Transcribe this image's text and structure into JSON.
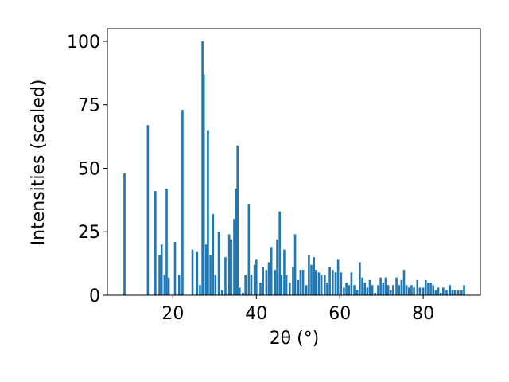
{
  "chart_data": {
    "type": "bar",
    "xlabel": "2θ (°)",
    "ylabel": "Intensities (scaled)",
    "x": [
      8.4,
      14.0,
      15.8,
      16.8,
      17.3,
      18.0,
      18.5,
      19.0,
      20.5,
      21.5,
      22.3,
      24.7,
      25.8,
      26.5,
      27.1,
      27.4,
      28.0,
      28.4,
      29.0,
      29.6,
      30.2,
      31.0,
      31.8,
      32.6,
      33.5,
      34.0,
      34.7,
      35.2,
      35.5,
      36.0,
      36.8,
      37.4,
      38.2,
      38.8,
      39.6,
      40.0,
      41.0,
      41.6,
      42.4,
      43.0,
      43.6,
      44.5,
      45.0,
      45.6,
      46.0,
      46.7,
      47.2,
      48.0,
      48.8,
      49.3,
      50.0,
      50.6,
      51.2,
      52.0,
      52.6,
      53.2,
      53.8,
      54.3,
      55.0,
      55.6,
      56.4,
      57.0,
      57.6,
      58.3,
      59.0,
      59.6,
      60.3,
      61.0,
      61.6,
      62.2,
      62.8,
      63.5,
      64.2,
      64.8,
      65.4,
      66.0,
      66.6,
      67.2,
      67.8,
      68.5,
      69.2,
      69.8,
      70.4,
      71.0,
      71.6,
      72.2,
      72.8,
      73.6,
      74.2,
      74.8,
      75.4,
      76.0,
      76.6,
      77.2,
      77.8,
      78.6,
      79.2,
      80.0,
      80.6,
      81.2,
      81.8,
      82.4,
      83.0,
      83.6,
      84.2,
      84.8,
      85.6,
      86.4,
      87.0,
      87.6,
      88.4,
      89.2,
      89.8
    ],
    "values": [
      48,
      67,
      41,
      16,
      20,
      8,
      42,
      7,
      21,
      8,
      73,
      18,
      17,
      4,
      100,
      87,
      20,
      65,
      16,
      32,
      8,
      25,
      2,
      15,
      24,
      22,
      30,
      42,
      59,
      3,
      1,
      8,
      36,
      8,
      12,
      14,
      5,
      11,
      10,
      13,
      19,
      10,
      22,
      33,
      8,
      18,
      8,
      5,
      11,
      24,
      6,
      10,
      10,
      4,
      16,
      12,
      15,
      10,
      9,
      8,
      8,
      5,
      11,
      10,
      9,
      14,
      9,
      3,
      5,
      4,
      9,
      4,
      2,
      13,
      7,
      5,
      3,
      6,
      4,
      1,
      4,
      7,
      5,
      7,
      4,
      2,
      4,
      7,
      4,
      6,
      10,
      4,
      3,
      4,
      3,
      6,
      3,
      3,
      6,
      5,
      5,
      4,
      2,
      3,
      1,
      3,
      2,
      4,
      2,
      2,
      2,
      2,
      4
    ],
    "color": "#1f77b4",
    "xlim": [
      4.3,
      93.7
    ],
    "ylim": [
      0,
      105
    ],
    "xticks": [
      20,
      40,
      60,
      80
    ],
    "yticks": [
      0,
      25,
      50,
      75,
      100
    ]
  }
}
